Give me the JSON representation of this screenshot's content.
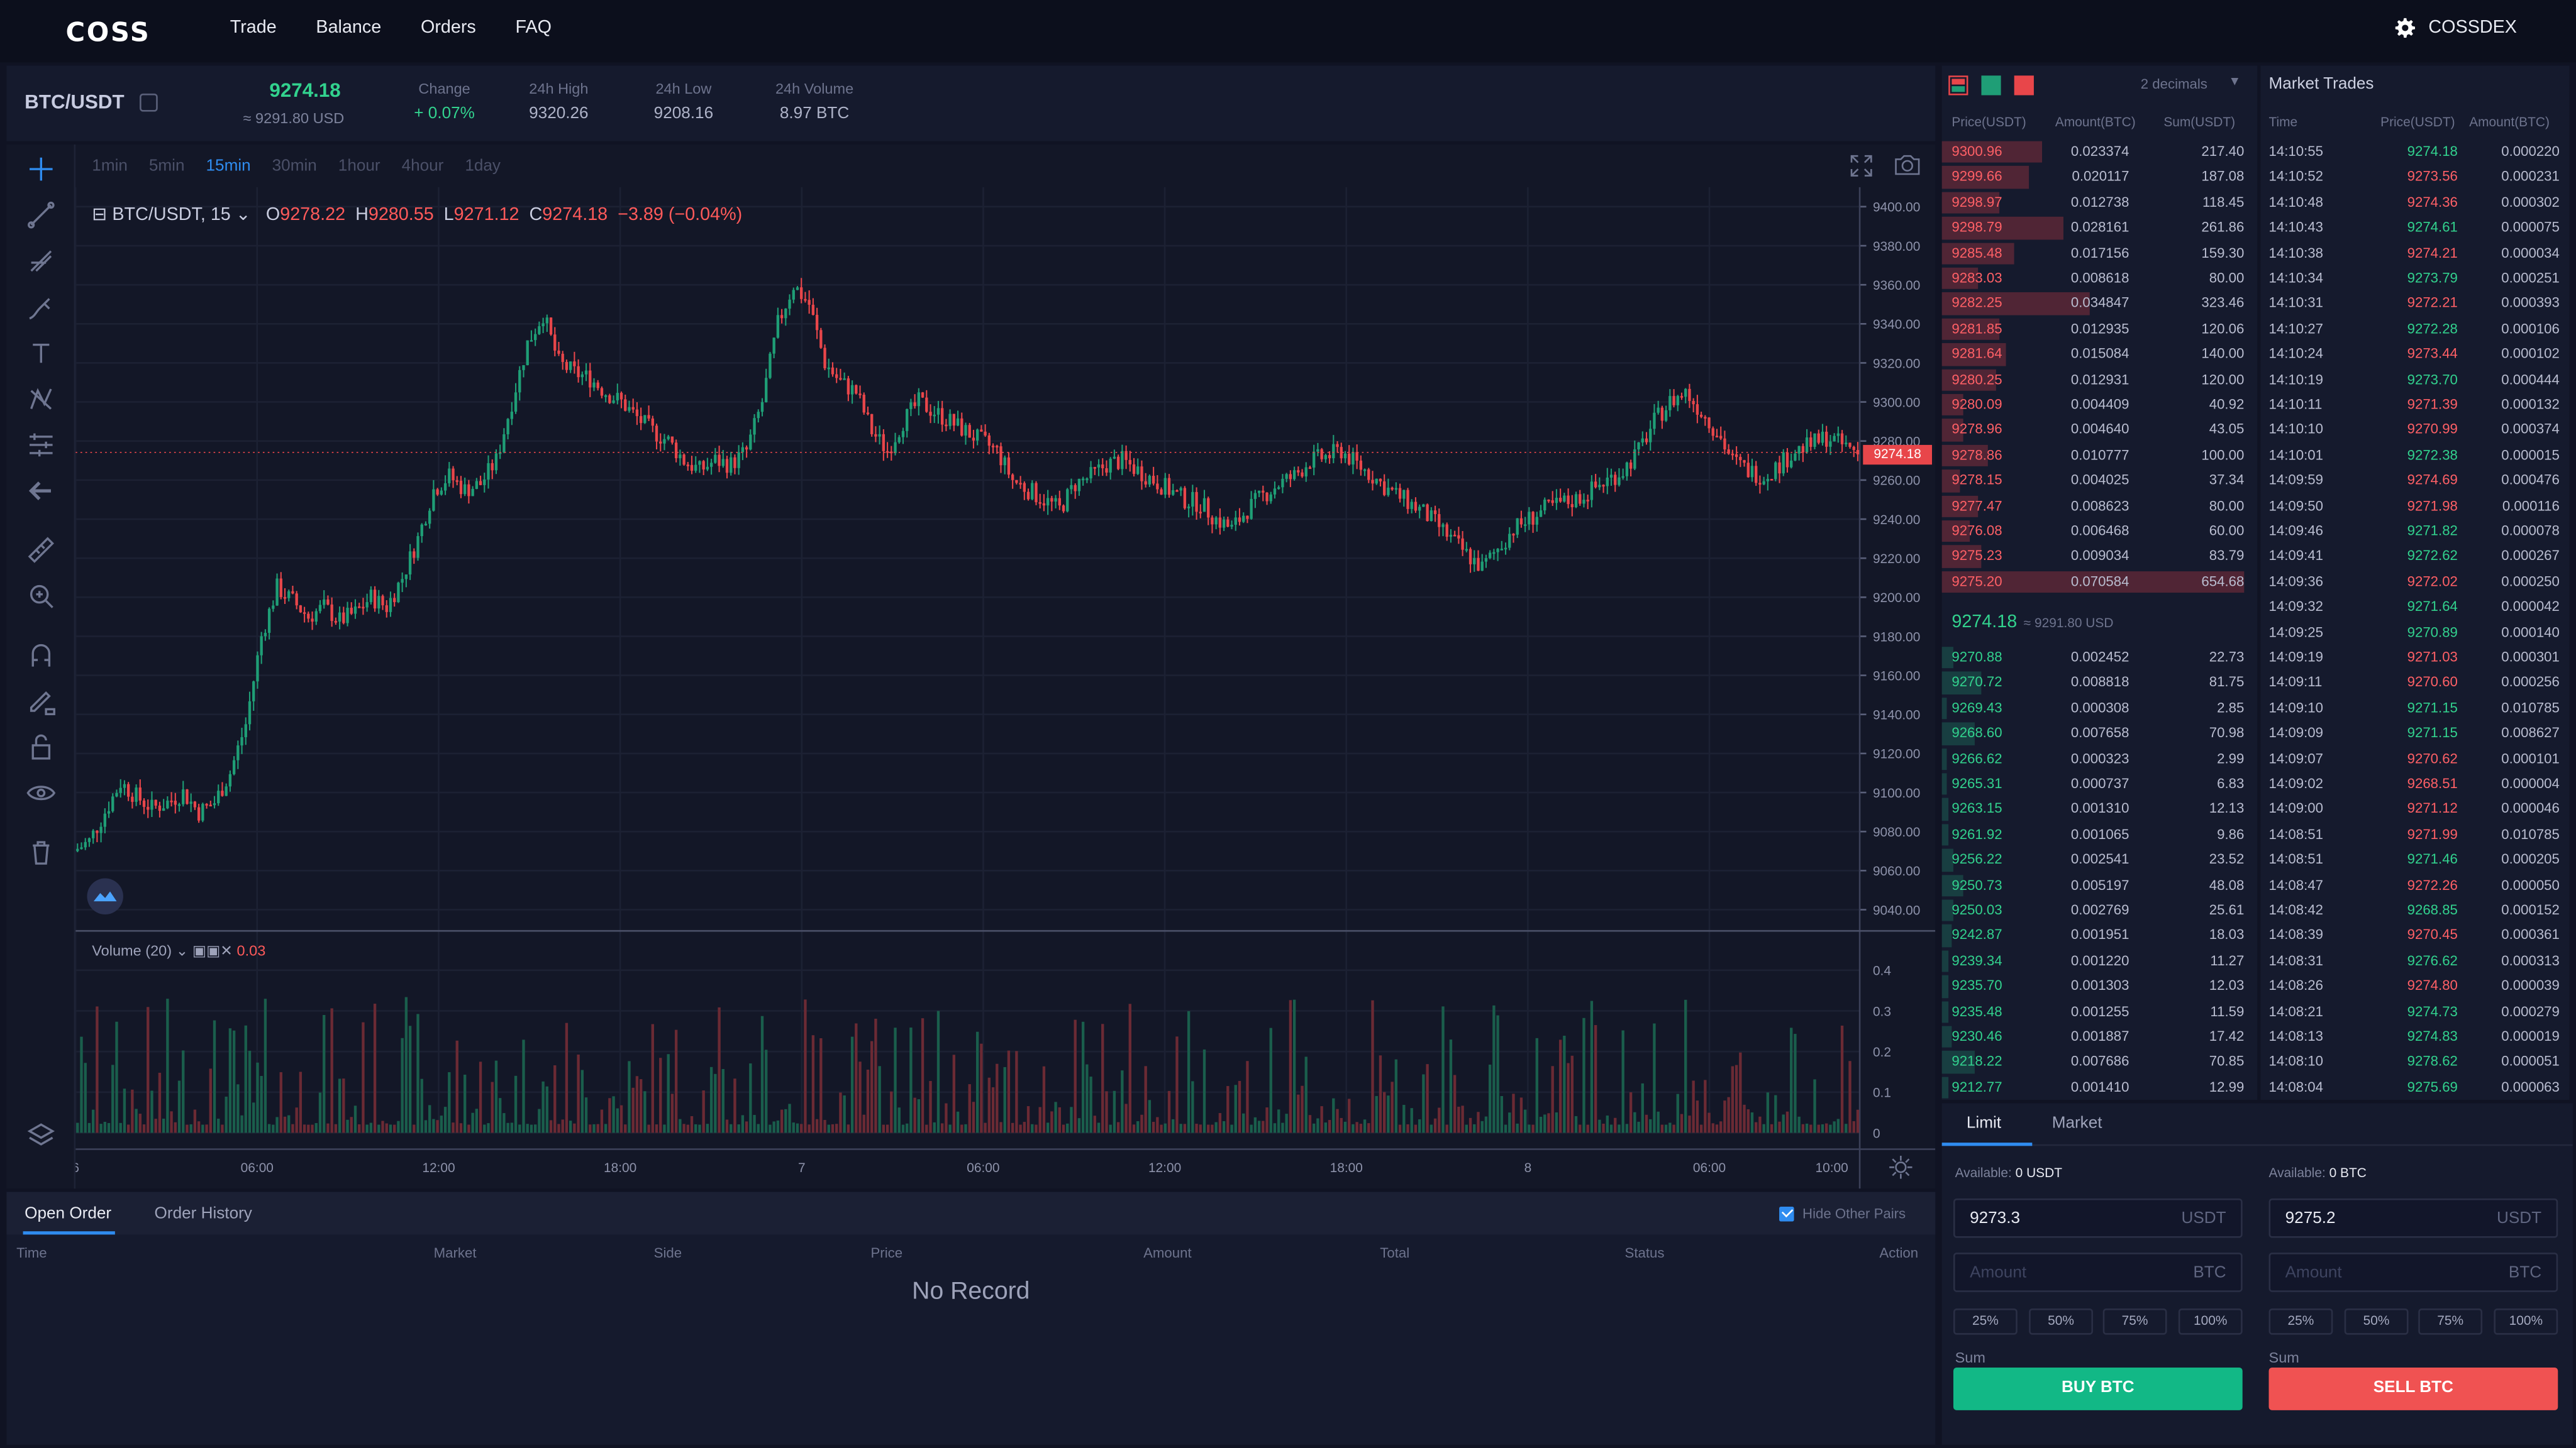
{
  "header": {
    "logo": "COSS",
    "nav": [
      "Trade",
      "Balance",
      "Orders",
      "FAQ"
    ],
    "account": "COSSDEX",
    "gear_icon": "gear-icon"
  },
  "ticker": {
    "pair": "BTC/USDT",
    "last_price": "9274.18",
    "last_usd": "≈ 9291.80 USD",
    "stats": [
      {
        "label": "Change",
        "value": "+ 0.07%",
        "color": "#32d28e"
      },
      {
        "label": "24h High",
        "value": "9320.26",
        "color": "#aeb3c8"
      },
      {
        "label": "24h Low",
        "value": "9208.16",
        "color": "#aeb3c8"
      },
      {
        "label": "24h Volume",
        "value": "8.97 BTC",
        "color": "#aeb3c8"
      }
    ]
  },
  "chart": {
    "intervals": [
      "1min",
      "5min",
      "15min",
      "30min",
      "1hour",
      "4hour",
      "1day"
    ],
    "active_interval": "15min",
    "symbol_line": "BTC/USDT, 15",
    "ohlc": {
      "o": "9278.22",
      "h": "9280.55",
      "l": "9271.12",
      "c": "9274.18",
      "chg": "−3.89 (−0.04%)"
    },
    "volume_title": "Volume (20)",
    "volume_value": "0.03",
    "current_price_tag": "9274.18",
    "colors": {
      "up": "#1f9e76",
      "down": "#e8464a",
      "grid": "#1c2133"
    }
  },
  "chart_data": {
    "type": "candlestick",
    "y_ticks": [
      "9400.00",
      "9380.00",
      "9360.00",
      "9340.00",
      "9320.00",
      "9300.00",
      "9280.00",
      "9260.00",
      "9240.00",
      "9220.00",
      "9200.00",
      "9180.00",
      "9160.00",
      "9140.00",
      "9120.00",
      "9100.00",
      "9080.00",
      "9060.00",
      "9040.00"
    ],
    "volume_ticks": [
      "0.4",
      "0.3",
      "0.2",
      "0.1",
      "0"
    ],
    "x_ticks": [
      "6",
      "06:00",
      "12:00",
      "18:00",
      "7",
      "06:00",
      "12:00",
      "18:00",
      "8",
      "06:00",
      "10:00"
    ],
    "ylim": [
      9030,
      9410
    ],
    "close_path": [
      9070,
      9075,
      9090,
      9105,
      9098,
      9092,
      9095,
      9100,
      9090,
      9095,
      9110,
      9135,
      9180,
      9205,
      9198,
      9190,
      9195,
      9188,
      9192,
      9200,
      9195,
      9210,
      9230,
      9255,
      9262,
      9255,
      9258,
      9270,
      9300,
      9330,
      9345,
      9320,
      9315,
      9312,
      9305,
      9300,
      9292,
      9285,
      9280,
      9270,
      9265,
      9270,
      9268,
      9275,
      9300,
      9340,
      9360,
      9350,
      9320,
      9310,
      9305,
      9285,
      9275,
      9290,
      9300,
      9295,
      9290,
      9285,
      9280,
      9275,
      9260,
      9255,
      9250,
      9245,
      9258,
      9262,
      9268,
      9270,
      9265,
      9260,
      9255,
      9250,
      9248,
      9240,
      9235,
      9245,
      9252,
      9258,
      9262,
      9270,
      9272,
      9275,
      9268,
      9262,
      9255,
      9250,
      9245,
      9238,
      9230,
      9222,
      9215,
      9225,
      9235,
      9240,
      9245,
      9248,
      9250,
      9255,
      9260,
      9265,
      9275,
      9290,
      9300,
      9305,
      9295,
      9285,
      9270,
      9265,
      9262,
      9268,
      9275,
      9278,
      9282,
      9278,
      9274
    ]
  },
  "orderbook": {
    "decimals": "2 decimals",
    "headers": [
      "Price(USDT)",
      "Amount(BTC)",
      "Sum(USDT)"
    ],
    "asks": [
      [
        "9300.96",
        "0.023374",
        "217.40",
        0.33
      ],
      [
        "9299.66",
        "0.020117",
        "187.08",
        0.29
      ],
      [
        "9298.97",
        "0.012738",
        "118.45",
        0.19
      ],
      [
        "9298.79",
        "0.028161",
        "261.86",
        0.4
      ],
      [
        "9285.48",
        "0.017156",
        "159.30",
        0.24
      ],
      [
        "9283.03",
        "0.008618",
        "80.00",
        0.12
      ],
      [
        "9282.25",
        "0.034847",
        "323.46",
        0.49
      ],
      [
        "9281.85",
        "0.012935",
        "120.06",
        0.19
      ],
      [
        "9281.64",
        "0.015084",
        "140.00",
        0.21
      ],
      [
        "9280.25",
        "0.012931",
        "120.00",
        0.18
      ],
      [
        "9280.09",
        "0.004409",
        "40.92",
        0.07
      ],
      [
        "9278.96",
        "0.004640",
        "43.05",
        0.07
      ],
      [
        "9278.86",
        "0.010777",
        "100.00",
        0.15
      ],
      [
        "9278.15",
        "0.004025",
        "37.34",
        0.06
      ],
      [
        "9277.47",
        "0.008623",
        "80.00",
        0.12
      ],
      [
        "9276.08",
        "0.006468",
        "60.00",
        0.09
      ],
      [
        "9275.23",
        "0.009034",
        "83.79",
        0.13
      ],
      [
        "9275.20",
        "0.070584",
        "654.68",
        1.0
      ]
    ],
    "mid": "9274.18",
    "mid_usd": "≈ 9291.80 USD",
    "bids": [
      [
        "9270.88",
        "0.002452",
        "22.73",
        0.04
      ],
      [
        "9270.72",
        "0.008818",
        "81.75",
        0.13
      ],
      [
        "9269.43",
        "0.000308",
        "2.85",
        0.01
      ],
      [
        "9268.60",
        "0.007658",
        "70.98",
        0.11
      ],
      [
        "9266.62",
        "0.000323",
        "2.99",
        0.01
      ],
      [
        "9265.31",
        "0.000737",
        "6.83",
        0.01
      ],
      [
        "9263.15",
        "0.001310",
        "12.13",
        0.02
      ],
      [
        "9261.92",
        "0.001065",
        "9.86",
        0.02
      ],
      [
        "9256.22",
        "0.002541",
        "23.52",
        0.04
      ],
      [
        "9250.73",
        "0.005197",
        "48.08",
        0.07
      ],
      [
        "9250.03",
        "0.002769",
        "25.61",
        0.04
      ],
      [
        "9242.87",
        "0.001951",
        "18.03",
        0.03
      ],
      [
        "9239.34",
        "0.001220",
        "11.27",
        0.02
      ],
      [
        "9235.70",
        "0.001303",
        "12.03",
        0.02
      ],
      [
        "9235.48",
        "0.001255",
        "11.59",
        0.02
      ],
      [
        "9230.46",
        "0.001887",
        "17.42",
        0.03
      ],
      [
        "9218.22",
        "0.007686",
        "70.85",
        0.11
      ],
      [
        "9212.77",
        "0.001410",
        "12.99",
        0.02
      ]
    ]
  },
  "trades": {
    "title": "Market Trades",
    "headers": [
      "Time",
      "Price(USDT)",
      "Amount(BTC)"
    ],
    "rows": [
      [
        "14:10:55",
        "9274.18",
        "0.000220",
        "up"
      ],
      [
        "14:10:52",
        "9273.56",
        "0.000231",
        "down"
      ],
      [
        "14:10:48",
        "9274.36",
        "0.000302",
        "down"
      ],
      [
        "14:10:43",
        "9274.61",
        "0.000075",
        "up"
      ],
      [
        "14:10:38",
        "9274.21",
        "0.000034",
        "down"
      ],
      [
        "14:10:34",
        "9273.79",
        "0.000251",
        "up"
      ],
      [
        "14:10:31",
        "9272.21",
        "0.000393",
        "down"
      ],
      [
        "14:10:27",
        "9272.28",
        "0.000106",
        "up"
      ],
      [
        "14:10:24",
        "9273.44",
        "0.000102",
        "down"
      ],
      [
        "14:10:19",
        "9273.70",
        "0.000444",
        "up"
      ],
      [
        "14:10:11",
        "9271.39",
        "0.000132",
        "down"
      ],
      [
        "14:10:10",
        "9270.99",
        "0.000374",
        "down"
      ],
      [
        "14:10:01",
        "9272.38",
        "0.000015",
        "up"
      ],
      [
        "14:09:59",
        "9274.69",
        "0.000476",
        "down"
      ],
      [
        "14:09:50",
        "9271.98",
        "0.000116",
        "down"
      ],
      [
        "14:09:46",
        "9271.82",
        "0.000078",
        "up"
      ],
      [
        "14:09:41",
        "9272.62",
        "0.000267",
        "up"
      ],
      [
        "14:09:36",
        "9272.02",
        "0.000250",
        "down"
      ],
      [
        "14:09:32",
        "9271.64",
        "0.000042",
        "up"
      ],
      [
        "14:09:25",
        "9270.89",
        "0.000140",
        "up"
      ],
      [
        "14:09:19",
        "9271.03",
        "0.000301",
        "down"
      ],
      [
        "14:09:11",
        "9270.60",
        "0.000256",
        "down"
      ],
      [
        "14:09:10",
        "9271.15",
        "0.010785",
        "up"
      ],
      [
        "14:09:09",
        "9271.15",
        "0.008627",
        "up"
      ],
      [
        "14:09:07",
        "9270.62",
        "0.000101",
        "down"
      ],
      [
        "14:09:02",
        "9268.51",
        "0.000004",
        "down"
      ],
      [
        "14:09:00",
        "9271.12",
        "0.000046",
        "down"
      ],
      [
        "14:08:51",
        "9271.99",
        "0.010785",
        "down"
      ],
      [
        "14:08:51",
        "9271.46",
        "0.000205",
        "up"
      ],
      [
        "14:08:47",
        "9272.26",
        "0.000050",
        "down"
      ],
      [
        "14:08:42",
        "9268.85",
        "0.000152",
        "up"
      ],
      [
        "14:08:39",
        "9270.45",
        "0.000361",
        "down"
      ],
      [
        "14:08:31",
        "9276.62",
        "0.000313",
        "up"
      ],
      [
        "14:08:26",
        "9274.80",
        "0.000039",
        "down"
      ],
      [
        "14:08:21",
        "9274.73",
        "0.000279",
        "up"
      ],
      [
        "14:08:13",
        "9274.83",
        "0.000019",
        "up"
      ],
      [
        "14:08:10",
        "9278.62",
        "0.000051",
        "up"
      ],
      [
        "14:08:04",
        "9275.69",
        "0.000063",
        "up"
      ]
    ]
  },
  "form": {
    "tabs": [
      "Limit",
      "Market"
    ],
    "available_label": "Available:",
    "buy_available": "0 USDT",
    "sell_available": "0 BTC",
    "buy_price": "9273.3",
    "sell_price": "9275.2",
    "price_unit": "USDT",
    "amount_placeholder": "Amount",
    "amount_unit": "BTC",
    "percents": [
      "25%",
      "50%",
      "75%",
      "100%"
    ],
    "sum_label": "Sum",
    "buy_label": "BUY BTC",
    "sell_label": "SELL BTC",
    "buy_color": "#12b886",
    "sell_color": "#f05252"
  },
  "orders": {
    "tabs": [
      "Open Order",
      "Order History"
    ],
    "hide_label": "Hide Other Pairs",
    "columns": [
      "Time",
      "Market",
      "Side",
      "Price",
      "Amount",
      "Total",
      "Status",
      "Action"
    ],
    "empty": "No Record"
  }
}
